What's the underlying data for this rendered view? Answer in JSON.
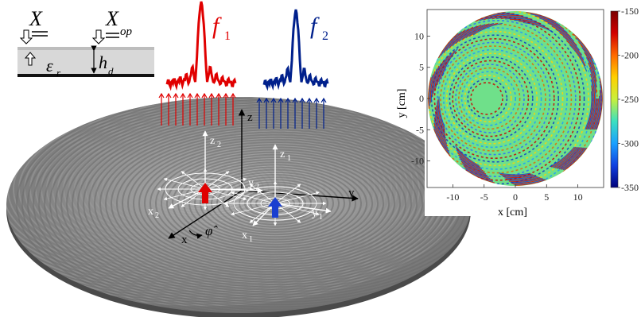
{
  "stack": {
    "surface_symbol": "X",
    "surface_symbol_op": "X",
    "op_subscript": "op",
    "permittivity_symbol": "ε",
    "permittivity_subscript": "r",
    "height_symbol": "h",
    "height_subscript": "d"
  },
  "pattern1": {
    "label": "f",
    "subscript": "1",
    "color": "#e00000"
  },
  "pattern2": {
    "label": "f",
    "subscript": "2",
    "color": "#00208c"
  },
  "global_axes": {
    "z": "z",
    "y": "y",
    "x": "x",
    "phi": "φ̂"
  },
  "source1": {
    "z": "z",
    "z_sub": "1",
    "y": "y",
    "y_sub": "1",
    "x": "x",
    "x_sub": "1",
    "arrow_color": "#1a3fd0"
  },
  "source2": {
    "z": "z",
    "z_sub": "2",
    "y": "y",
    "y_sub": "2",
    "x": "x",
    "x_sub": "2",
    "arrow_color": "#e00000"
  },
  "inset_map": {
    "xlabel": "x [cm]",
    "ylabel": "y [cm]",
    "x_ticks": [
      "-10",
      "-5",
      "0",
      "5",
      "10"
    ],
    "y_ticks": [
      "10",
      "5",
      "0",
      "-5",
      "-10"
    ],
    "colorbar_ticks": [
      "-150",
      "-200",
      "-250",
      "-300",
      "-350"
    ],
    "colorbar_colors": [
      "#7a0000",
      "#d20000",
      "#ff6a00",
      "#ffd000",
      "#c8f03c",
      "#3ce0c0",
      "#1aa0ff",
      "#1040e0",
      "#00007a"
    ]
  }
}
